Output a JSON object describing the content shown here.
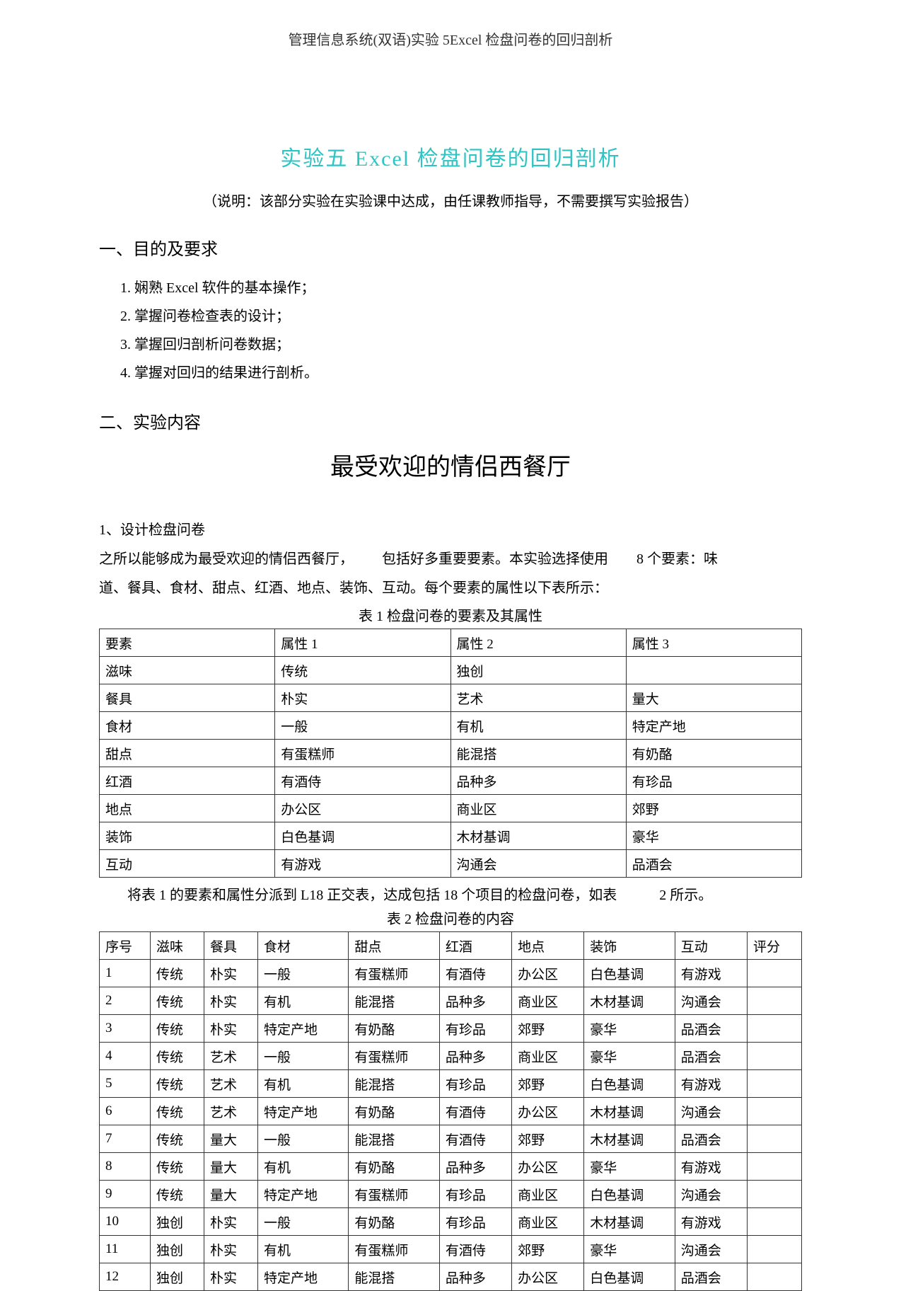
{
  "header": "管理信息系统(双语)实验 5Excel 检盘问卷的回归剖析",
  "title": "实验五 Excel 检盘问卷的回归剖析",
  "subtitle": "（说明：该部分实验在实验课中达成，由任课教师指导，不需要撰写实验报告）",
  "section1_heading": "一、目的及要求",
  "objectives": [
    "娴熟 Excel 软件的基本操作；",
    "掌握问卷检查表的设计；",
    "掌握回归剖析问卷数据；",
    "掌握对回归的结果进行剖析。"
  ],
  "section2_heading": "二、实验内容",
  "center_title": "最受欢迎的情侣西餐厅",
  "sub1_label": "1、设计检盘问卷",
  "intro_line1": "之所以能够成为最受欢迎的情侣西餐厅，  包括好多重要要素。本实验选择使用  8 个要素：味",
  "intro_line2": "道、餐具、食材、甜点、红酒、地点、装饰、互动。每个要素的属性以下表所示：",
  "table1_caption": "表 1 检盘问卷的要素及其属性",
  "table1": {
    "headers": [
      "要素",
      "属性 1",
      "属性 2",
      "属性 3"
    ],
    "rows": [
      [
        "滋味",
        "传统",
        "独创",
        ""
      ],
      [
        "餐具",
        "朴实",
        "艺术",
        "量大"
      ],
      [
        "食材",
        "一般",
        "有机",
        "特定产地"
      ],
      [
        "甜点",
        "有蛋糕师",
        "能混搭",
        "有奶酪"
      ],
      [
        "红酒",
        "有酒侍",
        "品种多",
        "有珍品"
      ],
      [
        "地点",
        "办公区",
        "商业区",
        "郊野"
      ],
      [
        "装饰",
        "白色基调",
        "木材基调",
        "豪华"
      ],
      [
        "互动",
        "有游戏",
        "沟通会",
        "品酒会"
      ]
    ]
  },
  "note_after_t1": "将表 1 的要素和属性分派到 L18 正交表，达成包括 18 个项目的检盘问卷，如表   2 所示。",
  "table2_caption": "表 2 检盘问卷的内容",
  "table2": {
    "headers": [
      "序号",
      "滋味",
      "餐具",
      "食材",
      "甜点",
      "红酒",
      "地点",
      "装饰",
      "互动",
      "评分"
    ],
    "rows": [
      [
        "1",
        "传统",
        "朴实",
        "一般",
        "有蛋糕师",
        "有酒侍",
        "办公区",
        "白色基调",
        "有游戏",
        ""
      ],
      [
        "2",
        "传统",
        "朴实",
        "有机",
        "能混搭",
        "品种多",
        "商业区",
        "木材基调",
        "沟通会",
        ""
      ],
      [
        "3",
        "传统",
        "朴实",
        "特定产地",
        "有奶酪",
        "有珍品",
        "郊野",
        "豪华",
        "品酒会",
        ""
      ],
      [
        "4",
        "传统",
        "艺术",
        "一般",
        "有蛋糕师",
        "品种多",
        "商业区",
        "豪华",
        "品酒会",
        ""
      ],
      [
        "5",
        "传统",
        "艺术",
        "有机",
        "能混搭",
        "有珍品",
        "郊野",
        "白色基调",
        "有游戏",
        ""
      ],
      [
        "6",
        "传统",
        "艺术",
        "特定产地",
        "有奶酪",
        "有酒侍",
        "办公区",
        "木材基调",
        "沟通会",
        ""
      ],
      [
        "7",
        "传统",
        "量大",
        "一般",
        "能混搭",
        "有酒侍",
        "郊野",
        "木材基调",
        "品酒会",
        ""
      ],
      [
        "8",
        "传统",
        "量大",
        "有机",
        "有奶酪",
        "品种多",
        "办公区",
        "豪华",
        "有游戏",
        ""
      ],
      [
        "9",
        "传统",
        "量大",
        "特定产地",
        "有蛋糕师",
        "有珍品",
        "商业区",
        "白色基调",
        "沟通会",
        ""
      ],
      [
        "10",
        "独创",
        "朴实",
        "一般",
        "有奶酪",
        "有珍品",
        "商业区",
        "木材基调",
        "有游戏",
        ""
      ],
      [
        "11",
        "独创",
        "朴实",
        "有机",
        "有蛋糕师",
        "有酒侍",
        "郊野",
        "豪华",
        "沟通会",
        ""
      ],
      [
        "12",
        "独创",
        "朴实",
        "特定产地",
        "能混搭",
        "品种多",
        "办公区",
        "白色基调",
        "品酒会",
        ""
      ]
    ]
  }
}
